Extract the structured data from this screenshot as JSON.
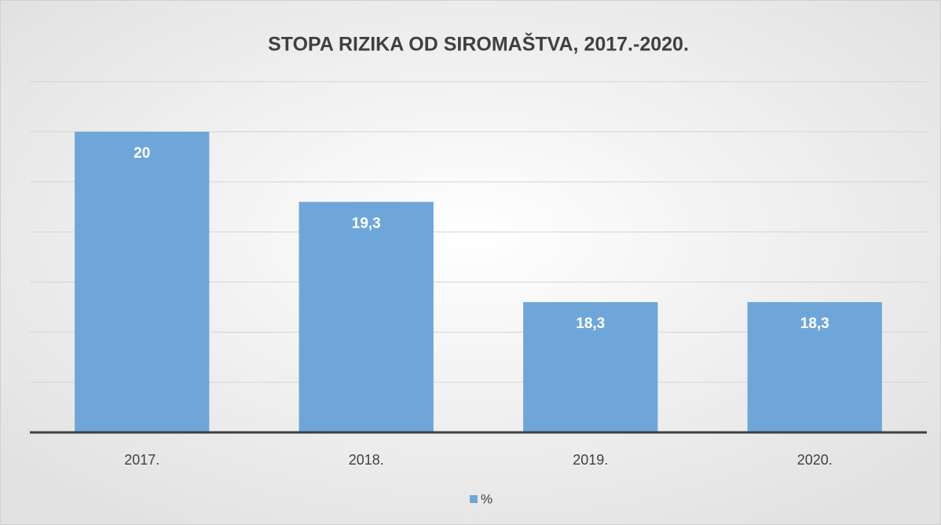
{
  "chart_data": {
    "type": "bar",
    "title": "STOPA RIZIKA OD SIROMAŠTVA, 2017.-2020.",
    "categories": [
      "2017.",
      "2018.",
      "2019.",
      "2020."
    ],
    "series": [
      {
        "name": "%",
        "color": "#6fa6da",
        "values": [
          20,
          19.3,
          18.3,
          18.3
        ],
        "value_labels": [
          "20",
          "19,3",
          "18,3",
          "18,3"
        ]
      }
    ],
    "ylim": [
      17,
      20.5
    ],
    "yticks": [
      17,
      17.5,
      18,
      18.5,
      19,
      19.5,
      20,
      20.5
    ],
    "grid": true,
    "legend": "bottom"
  }
}
